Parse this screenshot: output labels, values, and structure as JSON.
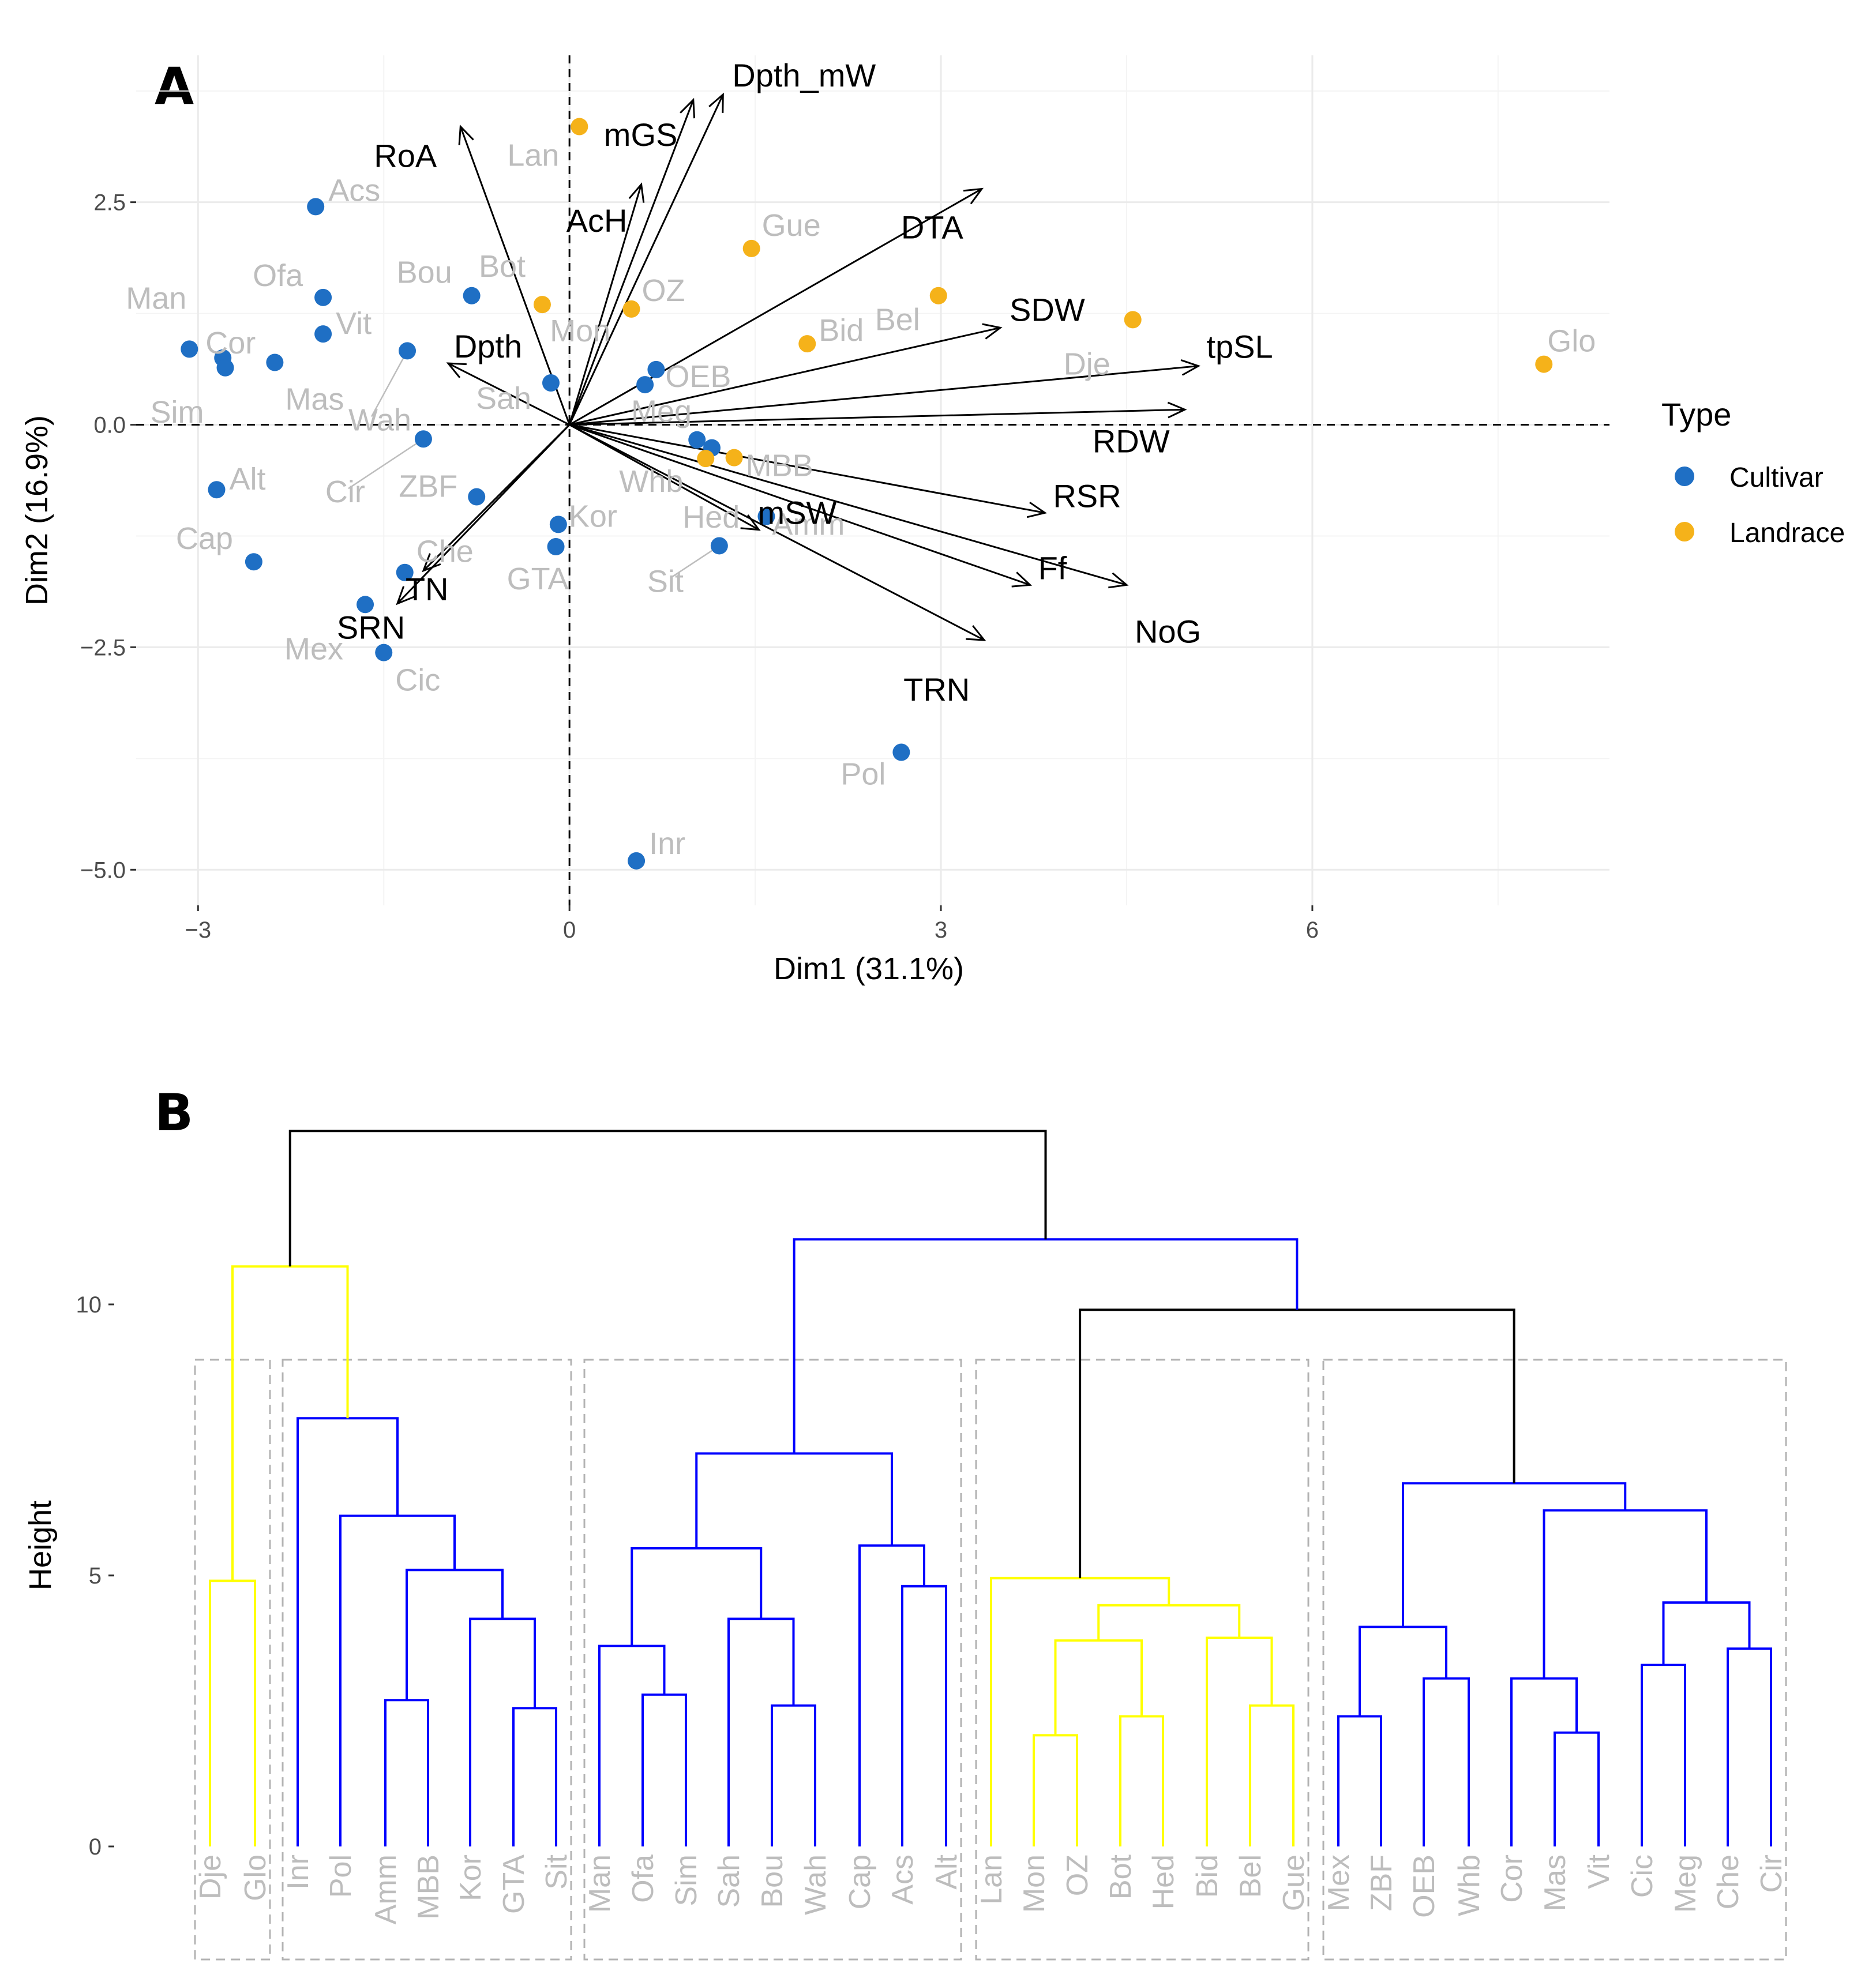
{
  "panels": {
    "a": "A",
    "b": "B"
  },
  "chart_data": [
    {
      "type": "scatter",
      "subtype": "pca-biplot",
      "panel": "A",
      "xlabel": "Dim1 (31.1%)",
      "ylabel": "Dim2 (16.9%)",
      "xlim": [
        -3.5,
        8.4
      ],
      "ylim": [
        -5.4,
        4.15
      ],
      "x_ticks": [
        -3,
        0,
        3,
        6
      ],
      "x_tick_labels": [
        "−3",
        "0",
        "3",
        "6"
      ],
      "y_ticks": [
        -5,
        -2.5,
        0,
        2.5
      ],
      "y_tick_labels": [
        "−5.0",
        "−2.5",
        "0.0",
        "2.5"
      ],
      "legend": {
        "title": "Type",
        "position": "right",
        "items": [
          {
            "label": "Cultivar",
            "color": "#1f6fc4"
          },
          {
            "label": "Landrace",
            "color": "#f5b21a"
          }
        ]
      },
      "individuals": [
        {
          "name": "Acs",
          "x": -2.05,
          "y": 2.45,
          "type": "Cultivar"
        },
        {
          "name": "Man",
          "x": -3.07,
          "y": 0.85,
          "type": "Cultivar"
        },
        {
          "name": "Ofa",
          "x": -1.99,
          "y": 1.43,
          "type": "Cultivar"
        },
        {
          "name": "Vit",
          "x": -1.99,
          "y": 1.02,
          "type": "Cultivar"
        },
        {
          "name": "Cor",
          "x": -2.8,
          "y": 0.75,
          "type": "Cultivar"
        },
        {
          "name": "Sim",
          "x": -2.78,
          "y": 0.64,
          "type": "Cultivar"
        },
        {
          "name": "Mas",
          "x": -2.38,
          "y": 0.7,
          "type": "Cultivar"
        },
        {
          "name": "Bou",
          "x": -0.79,
          "y": 1.45,
          "type": "Cultivar"
        },
        {
          "name": "Wah",
          "x": -1.31,
          "y": 0.83,
          "type": "Cultivar"
        },
        {
          "name": "Cir",
          "x": -1.18,
          "y": -0.16,
          "type": "Cultivar"
        },
        {
          "name": "ZBF",
          "x": -0.75,
          "y": -0.81,
          "type": "Cultivar"
        },
        {
          "name": "Alt",
          "x": -2.85,
          "y": -0.73,
          "type": "Cultivar"
        },
        {
          "name": "Cap",
          "x": -2.55,
          "y": -1.54,
          "type": "Cultivar"
        },
        {
          "name": "Che",
          "x": -1.33,
          "y": -1.66,
          "type": "Cultivar"
        },
        {
          "name": "Mex",
          "x": -1.65,
          "y": -2.02,
          "type": "Cultivar"
        },
        {
          "name": "Cic",
          "x": -1.5,
          "y": -2.56,
          "type": "Cultivar"
        },
        {
          "name": "Sah",
          "x": -0.15,
          "y": 0.47,
          "type": "Cultivar"
        },
        {
          "name": "Kor",
          "x": -0.09,
          "y": -1.12,
          "type": "Cultivar"
        },
        {
          "name": "GTA",
          "x": -0.11,
          "y": -1.37,
          "type": "Cultivar"
        },
        {
          "name": "OEB",
          "x": 0.7,
          "y": 0.62,
          "type": "Cultivar"
        },
        {
          "name": "Whb",
          "x": 1.03,
          "y": -0.17,
          "type": "Cultivar"
        },
        {
          "name": "Amm",
          "x": 1.59,
          "y": -1.03,
          "type": "Cultivar"
        },
        {
          "name": "Sit",
          "x": 1.21,
          "y": -1.36,
          "type": "Cultivar"
        },
        {
          "name": "Pol",
          "x": 2.68,
          "y": -3.68,
          "type": "Cultivar"
        },
        {
          "name": "Inr",
          "x": 0.54,
          "y": -4.9,
          "type": "Cultivar"
        },
        {
          "name": "Mon",
          "x": 0.61,
          "y": 0.45,
          "type": "Cultivar"
        },
        {
          "name": "Meg",
          "x": 1.15,
          "y": -0.26,
          "type": "Cultivar"
        },
        {
          "name": "Lan",
          "x": 0.08,
          "y": 3.35,
          "type": "Landrace"
        },
        {
          "name": "Gue",
          "x": 1.47,
          "y": 1.98,
          "type": "Landrace"
        },
        {
          "name": "Bel",
          "x": 2.98,
          "y": 1.45,
          "type": "Landrace"
        },
        {
          "name": "Bid",
          "x": 1.92,
          "y": 0.91,
          "type": "Landrace"
        },
        {
          "name": "Dje",
          "x": 4.55,
          "y": 1.18,
          "type": "Landrace"
        },
        {
          "name": "Glo",
          "x": 7.87,
          "y": 0.68,
          "type": "Landrace"
        },
        {
          "name": "OZ",
          "x": 0.5,
          "y": 1.3,
          "type": "Landrace"
        },
        {
          "name": "Bot",
          "x": -0.22,
          "y": 1.35,
          "type": "Landrace"
        },
        {
          "name": "MBB",
          "x": 1.33,
          "y": -0.37,
          "type": "Landrace"
        },
        {
          "name": "Hed",
          "x": 1.1,
          "y": -0.38,
          "type": "Landrace"
        }
      ],
      "variables": [
        {
          "name": "RoA",
          "x": -0.88,
          "y": 3.35
        },
        {
          "name": "AcH",
          "x": 0.58,
          "y": 2.7
        },
        {
          "name": "mGS",
          "x": 1.0,
          "y": 3.65
        },
        {
          "name": "Dpth_mW",
          "x": 1.24,
          "y": 3.71
        },
        {
          "name": "DTA",
          "x": 3.33,
          "y": 2.65
        },
        {
          "name": "SDW",
          "x": 3.48,
          "y": 1.09
        },
        {
          "name": "tpSL",
          "x": 5.08,
          "y": 0.66
        },
        {
          "name": "RDW",
          "x": 4.97,
          "y": 0.17
        },
        {
          "name": "RSR",
          "x": 3.84,
          "y": -0.99
        },
        {
          "name": "Ff",
          "x": 3.72,
          "y": -1.8
        },
        {
          "name": "NoG",
          "x": 4.5,
          "y": -1.8
        },
        {
          "name": "TRN",
          "x": 3.35,
          "y": -2.42
        },
        {
          "name": "mSW",
          "x": 1.53,
          "y": -1.18
        },
        {
          "name": "Dpth",
          "x": -0.98,
          "y": 0.69
        },
        {
          "name": "TN",
          "x": -1.39,
          "y": -2.01
        },
        {
          "name": "SRN",
          "x": -1.18,
          "y": -1.64
        }
      ]
    },
    {
      "type": "dendrogram",
      "panel": "B",
      "ylabel": "Height",
      "ylim": [
        -2.5,
        13.8
      ],
      "y_ticks": [
        0,
        5,
        10
      ],
      "y_tick_labels": [
        "0",
        "5",
        "10"
      ],
      "leaves": [
        "Dje",
        "Glo",
        "Inr",
        "Pol",
        "Amm",
        "MBB",
        "Kor",
        "GTA",
        "Sit",
        "Man",
        "Ofa",
        "Sim",
        "Sah",
        "Bou",
        "Wah",
        "Cap",
        "Acs",
        "Alt",
        "Lan",
        "Mon",
        "OZ",
        "Bot",
        "Hed",
        "Bid",
        "Bel",
        "Gue",
        "Mex",
        "ZBF",
        "OEB",
        "Whb",
        "Cor",
        "Mas",
        "Vit",
        "Cic",
        "Meg",
        "Che",
        "Cir"
      ],
      "clusters": [
        {
          "members": [
            "Dje",
            "Glo"
          ],
          "color": "#ffff00"
        },
        {
          "members": [
            "Inr",
            "Pol",
            "Amm",
            "MBB",
            "Kor",
            "GTA",
            "Sit"
          ],
          "color": "#0000ff"
        },
        {
          "members": [
            "Man",
            "Ofa",
            "Sim",
            "Sah",
            "Bou",
            "Wah",
            "Cap",
            "Acs",
            "Alt"
          ],
          "color": "#0000ff"
        },
        {
          "members": [
            "Lan",
            "Mon",
            "OZ",
            "Bot",
            "Hed",
            "Bid",
            "Bel",
            "Gue"
          ],
          "color": "#ffff00"
        },
        {
          "members": [
            "Mex",
            "ZBF",
            "OEB",
            "Whb",
            "Cor",
            "Mas",
            "Vit",
            "Cic",
            "Meg",
            "Che",
            "Cir"
          ],
          "color": "#0000ff"
        }
      ],
      "merges": [
        {
          "left": "Dje",
          "right": "Glo",
          "height": 4.9,
          "color": "#ffff00"
        },
        {
          "left": "Amm",
          "right": "MBB",
          "height": 2.7,
          "color": "#0000ff"
        },
        {
          "left": "GTA",
          "right": "Sit",
          "height": 2.55,
          "color": "#0000ff"
        },
        {
          "left": "Kor",
          "right": "GTA+Sit",
          "height": 4.2,
          "color": "#0000ff"
        },
        {
          "left": "Amm+MBB",
          "right": "Kor+GTA+Sit",
          "height": 5.1,
          "color": "#0000ff"
        },
        {
          "left": "Pol",
          "right": "Amm..Sit",
          "height": 6.1,
          "color": "#0000ff"
        },
        {
          "left": "Inr",
          "right": "Pol..Sit",
          "height": 7.9,
          "color": "#0000ff"
        },
        {
          "left": "Dje+Glo",
          "right": "Inr..Sit",
          "height": 10.7,
          "color": "#ffff00"
        },
        {
          "left": "Ofa",
          "right": "Sim",
          "height": 2.8,
          "color": "#0000ff"
        },
        {
          "left": "Man",
          "right": "Ofa+Sim",
          "height": 3.7,
          "color": "#0000ff"
        },
        {
          "left": "Bou",
          "right": "Wah",
          "height": 2.6,
          "color": "#0000ff"
        },
        {
          "left": "Sah",
          "right": "Bou+Wah",
          "height": 4.2,
          "color": "#0000ff"
        },
        {
          "left": "Man..Sim",
          "right": "Sah..Wah",
          "height": 5.5,
          "color": "#0000ff"
        },
        {
          "left": "Acs",
          "right": "Alt",
          "height": 4.8,
          "color": "#0000ff"
        },
        {
          "left": "Cap",
          "right": "Acs+Alt",
          "height": 5.55,
          "color": "#0000ff"
        },
        {
          "left": "Man..Wah",
          "right": "Cap..Alt",
          "height": 7.25,
          "color": "#0000ff"
        },
        {
          "left": "Mon",
          "right": "OZ",
          "height": 2.05,
          "color": "#ffff00"
        },
        {
          "left": "Bot",
          "right": "Hed",
          "height": 2.4,
          "color": "#ffff00"
        },
        {
          "left": "Mon+OZ",
          "right": "Bot+Hed",
          "height": 3.8,
          "color": "#ffff00"
        },
        {
          "left": "Bel",
          "right": "Gue",
          "height": 2.6,
          "color": "#ffff00"
        },
        {
          "left": "Bid",
          "right": "Bel+Gue",
          "height": 3.85,
          "color": "#ffff00"
        },
        {
          "left": "Mon..Hed",
          "right": "Bid..Gue",
          "height": 4.45,
          "color": "#ffff00"
        },
        {
          "left": "Lan",
          "right": "Mon..Gue",
          "height": 4.95,
          "color": "#ffff00"
        },
        {
          "left": "Mex",
          "right": "ZBF",
          "height": 2.4,
          "color": "#0000ff"
        },
        {
          "left": "OEB",
          "right": "Whb",
          "height": 3.1,
          "color": "#0000ff"
        },
        {
          "left": "Mex+ZBF",
          "right": "OEB+Whb",
          "height": 4.05,
          "color": "#0000ff"
        },
        {
          "left": "Mas",
          "right": "Vit",
          "height": 2.1,
          "color": "#0000ff"
        },
        {
          "left": "Cor",
          "right": "Mas+Vit",
          "height": 3.1,
          "color": "#0000ff"
        },
        {
          "left": "Cic",
          "right": "Meg",
          "height": 3.35,
          "color": "#0000ff"
        },
        {
          "left": "Che",
          "right": "Cir",
          "height": 3.65,
          "color": "#0000ff"
        },
        {
          "left": "Cic+Meg",
          "right": "Che+Cir",
          "height": 4.5,
          "color": "#0000ff"
        },
        {
          "left": "Cor..Vit",
          "right": "Cic..Cir",
          "height": 6.2,
          "color": "#0000ff"
        },
        {
          "left": "Mex..Whb",
          "right": "Cor..Cir",
          "height": 6.7,
          "color": "#0000ff"
        },
        {
          "left": "Lan..Gue",
          "right": "Mex..Cir",
          "height": 9.9,
          "color": "#000000"
        },
        {
          "left": "Man..Alt",
          "right": "Lan..Cir",
          "height": 11.2,
          "color": "#0000ff"
        },
        {
          "left": "Dje..Sit",
          "right": "Man..Cir",
          "height": 13.2,
          "color": "#000000"
        }
      ]
    }
  ]
}
